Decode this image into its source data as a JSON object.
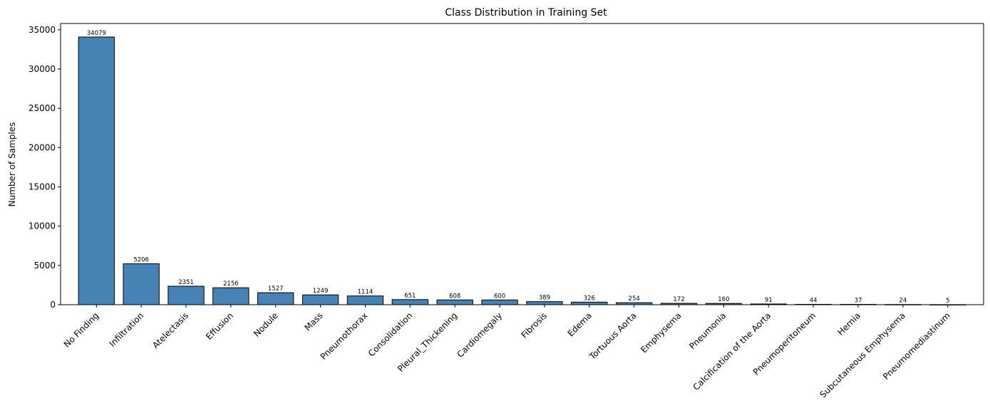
{
  "chart_data": {
    "type": "bar",
    "title": "Class Distribution in Training Set",
    "xlabel": "",
    "ylabel": "Number of Samples",
    "ylim": [
      0,
      35800
    ],
    "yticks": [
      0,
      5000,
      10000,
      15000,
      20000,
      25000,
      30000,
      35000
    ],
    "grid": false,
    "bar_color": "#4682b4",
    "bar_edge_color": "#000000",
    "categories": [
      "No Finding",
      "Infiltration",
      "Atelectasis",
      "Effusion",
      "Nodule",
      "Mass",
      "Pneumothorax",
      "Consolidation",
      "Pleural_Thickening",
      "Cardiomegaly",
      "Fibrosis",
      "Edema",
      "Tortuous Aorta",
      "Emphysema",
      "Pneumonia",
      "Calcification of the Aorta",
      "Pneumoperitoneum",
      "Hernia",
      "Subcutaneous Emphysema",
      "Pneumomediastinum"
    ],
    "values": [
      34079,
      5206,
      2351,
      2156,
      1527,
      1249,
      1114,
      651,
      608,
      600,
      389,
      326,
      254,
      172,
      160,
      91,
      44,
      37,
      24,
      5
    ],
    "value_labels": [
      "34079",
      "5206",
      "2351",
      "2156",
      "1527",
      "1249",
      "1114",
      "651",
      "608",
      "600",
      "389",
      "326",
      "254",
      "172",
      "160",
      "91",
      "44",
      "37",
      "24",
      "5"
    ]
  }
}
